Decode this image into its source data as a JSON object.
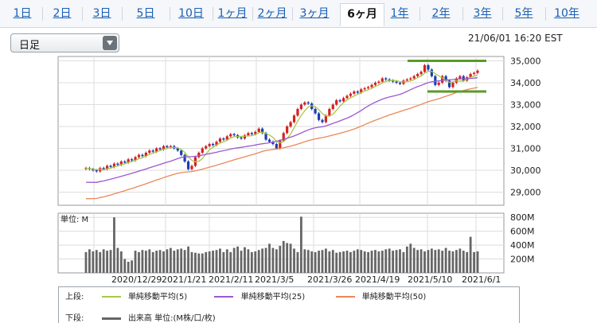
{
  "tabs": [
    "1日",
    "2日",
    "3日",
    "5日",
    "10日",
    "1ヶ月",
    "2ヶ月",
    "3ヶ月",
    "6ヶ月",
    "1年",
    "2年",
    "3年",
    "5年",
    "10年"
  ],
  "active_tab": "6ヶ月",
  "interval_select": {
    "value": "日足"
  },
  "timestamp": "21/06/01 16:20 EST",
  "legend": {
    "upper_label": "上段:",
    "lower_label": "下段:",
    "ma5": "単純移動平均(5)",
    "ma25": "単純移動平均(25)",
    "ma50": "単純移動平均(50)",
    "volume": "出来高 単位:(M株/口/枚)",
    "colors": {
      "ma5": "#a8c84a",
      "ma25": "#9b59d0",
      "ma50": "#e8895a",
      "volume": "#666666"
    }
  },
  "volume_unit_label": "単位: M",
  "chart_data": [
    {
      "type": "candlestick",
      "title": "",
      "x_tick_labels": [
        "2020/12/29",
        "2021/1/21",
        "2021/2/11",
        "2021/3/5",
        "2021/3/26",
        "2021/4/19",
        "2021/5/10",
        "2021/6/1"
      ],
      "y_ticks": [
        "29,000",
        "30,000",
        "31,000",
        "32,000",
        "33,000",
        "34,000",
        "35,000"
      ],
      "ylim": [
        28400,
        35200
      ],
      "closes": [
        30100,
        30050,
        30000,
        29950,
        30100,
        30050,
        30200,
        30150,
        30300,
        30250,
        30400,
        30350,
        30500,
        30450,
        30600,
        30700,
        30650,
        30800,
        30900,
        30850,
        31000,
        30950,
        31100,
        31050,
        31100,
        31000,
        30900,
        30700,
        30400,
        30050,
        30200,
        30600,
        30800,
        31000,
        31100,
        31200,
        31150,
        31300,
        31450,
        31400,
        31550,
        31650,
        31600,
        31500,
        31450,
        31600,
        31700,
        31650,
        31750,
        31900,
        31700,
        31400,
        31300,
        31200,
        31000,
        31350,
        31700,
        32000,
        32200,
        32500,
        32800,
        33000,
        33100,
        33050,
        32800,
        32600,
        32300,
        32200,
        32500,
        32800,
        33000,
        33200,
        33150,
        33300,
        33400,
        33500,
        33600,
        33550,
        33700,
        33750,
        33800,
        33900,
        34000,
        34050,
        34200,
        34150,
        34100,
        34050,
        34000,
        33950,
        34100,
        34150,
        34200,
        34300,
        34400,
        34500,
        34800,
        34600,
        34300,
        33900,
        34000,
        34300,
        34100,
        33800,
        34000,
        34200,
        34300,
        34100,
        34250,
        34400,
        34450,
        34550
      ],
      "ma5_start": 30050,
      "ma25": {
        "start": 29450,
        "end": 34250
      },
      "ma50": {
        "start": 28700,
        "end": 33800
      },
      "annotations": {
        "resistance": 35000,
        "support": 33600
      }
    },
    {
      "type": "bar",
      "title": "出来高",
      "ylabel": "単位: M",
      "y_ticks": [
        "200M",
        "400M",
        "600M",
        "800M"
      ],
      "ylim": [
        0,
        860
      ],
      "values": [
        300,
        340,
        310,
        330,
        300,
        340,
        320,
        330,
        800,
        360,
        310,
        200,
        160,
        180,
        320,
        300,
        330,
        320,
        340,
        300,
        320,
        330,
        310,
        340,
        360,
        320,
        340,
        350,
        330,
        380,
        300,
        290,
        280,
        280,
        300,
        310,
        320,
        330,
        350,
        300,
        340,
        300,
        360,
        380,
        320,
        370,
        340,
        300,
        310,
        330,
        350,
        360,
        420,
        360,
        340,
        390,
        460,
        430,
        420,
        350,
        300,
        810,
        340,
        330,
        310,
        300,
        320,
        330,
        350,
        310,
        330,
        290,
        300,
        310,
        320,
        300,
        320,
        340,
        330,
        310,
        300,
        320,
        330,
        310,
        320,
        340,
        350,
        320,
        330,
        340,
        300,
        380,
        420,
        360,
        330,
        340,
        310,
        330,
        350,
        330,
        340,
        320,
        360,
        320,
        310,
        330,
        350,
        320,
        300,
        520,
        300,
        310
      ]
    }
  ]
}
